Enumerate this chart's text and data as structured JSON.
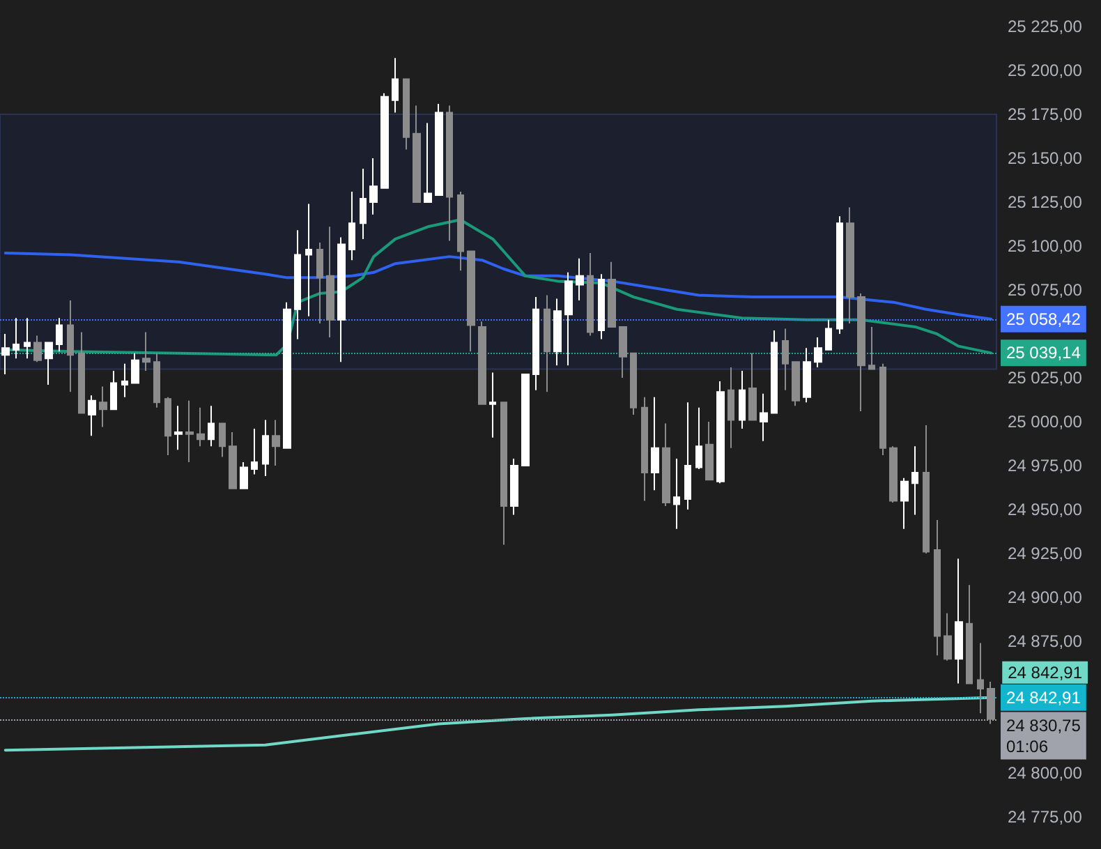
{
  "chart_data": {
    "type": "candlestick",
    "categories": [
      null,
      null,
      null,
      null,
      null,
      null,
      null,
      null,
      null,
      null,
      null,
      null,
      null,
      null,
      null,
      null,
      null,
      null,
      null,
      null,
      null,
      null,
      null,
      null,
      null,
      null,
      null,
      null,
      null,
      null,
      null,
      null,
      null,
      null,
      null,
      null,
      null,
      null,
      null,
      null,
      null,
      null,
      null,
      null,
      null,
      null,
      null,
      null,
      null,
      null,
      null,
      null,
      null,
      null,
      null,
      null,
      null,
      null,
      null,
      null,
      null,
      null,
      null,
      null,
      null,
      null,
      null,
      null,
      null,
      null,
      null,
      null,
      null,
      null,
      null,
      null,
      null,
      null,
      null,
      null,
      null,
      null,
      null,
      null,
      null,
      null,
      null,
      null,
      null,
      null,
      null,
      null
    ],
    "ohlc": [
      [
        25038,
        25050,
        25027,
        25042
      ],
      [
        25041,
        25059,
        25036,
        25044
      ],
      [
        25043,
        25059,
        25036,
        25045
      ],
      [
        25045,
        25049,
        25034,
        25035
      ],
      [
        25036,
        25045,
        25021,
        25045
      ],
      [
        25044,
        25059,
        25040,
        25055
      ],
      [
        25055,
        25069,
        25017,
        25038
      ],
      [
        25039,
        25051,
        25005,
        25005
      ],
      [
        25004,
        25015,
        24992,
        25012
      ],
      [
        25011,
        25020,
        24997,
        25007
      ],
      [
        25007,
        25029,
        25007,
        25022
      ],
      [
        25021,
        25033,
        25014,
        25023
      ],
      [
        25022,
        25039,
        25022,
        25035
      ],
      [
        25036,
        25051,
        25029,
        25034
      ],
      [
        25034,
        25039,
        25008,
        25011
      ],
      [
        25013,
        25014,
        24981,
        24992
      ],
      [
        24993,
        25009,
        24984,
        24994
      ],
      [
        24994,
        25012,
        24977,
        24993
      ],
      [
        24993,
        25008,
        24986,
        24990
      ],
      [
        24990,
        25009,
        24986,
        24999
      ],
      [
        24999,
        24999,
        24980,
        24986
      ],
      [
        24986,
        24994,
        24962,
        24962
      ],
      [
        24962,
        24977,
        24962,
        24974
      ],
      [
        24973,
        24996,
        24970,
        24977
      ],
      [
        24976,
        25001,
        24969,
        24992
      ],
      [
        24992,
        25001,
        24975,
        24986
      ],
      [
        24985,
        25068,
        24985,
        25064
      ],
      [
        25064,
        25109,
        25047,
        25095
      ],
      [
        25095,
        25124,
        25060,
        25098
      ],
      [
        25098,
        25102,
        25056,
        25082
      ],
      [
        25083,
        25111,
        25048,
        25058
      ],
      [
        25058,
        25105,
        25034,
        25101
      ],
      [
        25098,
        25131,
        25092,
        25113
      ],
      [
        25113,
        25144,
        25104,
        25127
      ],
      [
        25125,
        25150,
        25118,
        25134
      ],
      [
        25133,
        25187,
        25133,
        25185
      ],
      [
        25183,
        25207,
        25176,
        25195
      ],
      [
        25195,
        25195,
        25155,
        25162
      ],
      [
        25164,
        25180,
        25125,
        25125
      ],
      [
        25125,
        25170,
        25125,
        25130
      ],
      [
        25129,
        25181,
        25129,
        25176
      ],
      [
        25176,
        25180,
        25103,
        25128
      ],
      [
        25129,
        25131,
        25086,
        25097
      ],
      [
        25097,
        25097,
        25040,
        25055
      ],
      [
        25054,
        25057,
        25010,
        25010
      ],
      [
        25010,
        25028,
        24991,
        25011
      ],
      [
        25011,
        25011,
        24930,
        24952
      ],
      [
        24952,
        24979,
        24947,
        24975
      ],
      [
        24975,
        25027,
        24975,
        25027
      ],
      [
        25027,
        25071,
        25018,
        25064
      ],
      [
        25064,
        25072,
        25017,
        25040
      ],
      [
        25040,
        25070,
        25032,
        25063
      ],
      [
        25061,
        25085,
        25032,
        25080
      ],
      [
        25078,
        25093,
        25069,
        25083
      ],
      [
        25083,
        25096,
        25049,
        25051
      ],
      [
        25052,
        25084,
        25047,
        25081
      ],
      [
        25081,
        25091,
        25054,
        25054
      ],
      [
        25054,
        25054,
        25025,
        25037
      ],
      [
        25039,
        25039,
        25004,
        25008
      ],
      [
        25008,
        25014,
        24955,
        24971
      ],
      [
        24971,
        25014,
        24961,
        24985
      ],
      [
        24985,
        24999,
        24952,
        24954
      ],
      [
        24953,
        24979,
        24939,
        24957
      ],
      [
        24956,
        25011,
        24950,
        24975
      ],
      [
        24974,
        25008,
        24973,
        24986
      ],
      [
        24987,
        25000,
        24967,
        24967
      ],
      [
        24966,
        25023,
        24965,
        25017
      ],
      [
        25018,
        25031,
        24985,
        25001
      ],
      [
        25001,
        25029,
        24996,
        25018
      ],
      [
        25019,
        25039,
        25001,
        25001
      ],
      [
        25000,
        25016,
        24989,
        25005
      ],
      [
        25005,
        25052,
        25005,
        25045
      ],
      [
        25046,
        25053,
        25018,
        25033
      ],
      [
        25034,
        25034,
        25009,
        25012
      ],
      [
        25014,
        25042,
        25011,
        25034
      ],
      [
        25034,
        25048,
        25031,
        25042
      ],
      [
        25041,
        25058,
        25041,
        25053
      ],
      [
        25053,
        25117,
        25050,
        25113
      ],
      [
        25113,
        25122,
        25056,
        25071
      ],
      [
        25071,
        25073,
        25006,
        25032
      ],
      [
        25032,
        25054,
        25030,
        25030
      ],
      [
        25031,
        25033,
        24981,
        24985
      ],
      [
        24985,
        24986,
        24954,
        24955
      ],
      [
        24955,
        24968,
        24939,
        24966
      ],
      [
        24965,
        24986,
        24947,
        24971
      ],
      [
        24971,
        24998,
        24925,
        24926
      ],
      [
        24927,
        24944,
        24867,
        24878
      ],
      [
        24878,
        24891,
        24864,
        24865
      ],
      [
        24865,
        24922,
        24851,
        24886
      ],
      [
        24885,
        24907,
        24851,
        24851
      ],
      [
        24853,
        24874,
        24834,
        24848
      ],
      [
        24848,
        24852,
        24828,
        24830.75
      ]
    ],
    "colors": [
      "#ffffff",
      "#ffffff",
      "#ffffff",
      "#8c8c8c",
      "#ffffff",
      "#ffffff",
      "#8c8c8c",
      "#8c8c8c",
      "#ffffff",
      "#8c8c8c",
      "#ffffff",
      "#ffffff",
      "#ffffff",
      "#8c8c8c",
      "#8c8c8c",
      "#8c8c8c",
      "#ffffff",
      "#8c8c8c",
      "#8c8c8c",
      "#ffffff",
      "#8c8c8c",
      "#8c8c8c",
      "#ffffff",
      "#ffffff",
      "#ffffff",
      "#8c8c8c",
      "#ffffff",
      "#ffffff",
      "#ffffff",
      "#8c8c8c",
      "#8c8c8c",
      "#ffffff",
      "#ffffff",
      "#ffffff",
      "#ffffff",
      "#ffffff",
      "#ffffff",
      "#8c8c8c",
      "#8c8c8c",
      "#ffffff",
      "#ffffff",
      "#8c8c8c",
      "#8c8c8c",
      "#8c8c8c",
      "#8c8c8c",
      "#ffffff",
      "#8c8c8c",
      "#ffffff",
      "#ffffff",
      "#ffffff",
      "#8c8c8c",
      "#ffffff",
      "#ffffff",
      "#ffffff",
      "#8c8c8c",
      "#ffffff",
      "#8c8c8c",
      "#8c8c8c",
      "#8c8c8c",
      "#8c8c8c",
      "#ffffff",
      "#8c8c8c",
      "#ffffff",
      "#ffffff",
      "#ffffff",
      "#8c8c8c",
      "#ffffff",
      "#8c8c8c",
      "#ffffff",
      "#8c8c8c",
      "#ffffff",
      "#ffffff",
      "#8c8c8c",
      "#8c8c8c",
      "#ffffff",
      "#ffffff",
      "#ffffff",
      "#ffffff",
      "#8c8c8c",
      "#8c8c8c",
      "#8c8c8c",
      "#8c8c8c",
      "#8c8c8c",
      "#ffffff",
      "#ffffff",
      "#8c8c8c",
      "#8c8c8c",
      "#8c8c8c",
      "#ffffff",
      "#8c8c8c",
      "#8c8c8c",
      "#8c8c8c"
    ],
    "series": [
      {
        "type": "line",
        "color": "#2f62ee",
        "values": [
          25096,
          null,
          null,
          null,
          null,
          null,
          25095,
          null,
          null,
          null,
          null,
          null,
          null,
          null,
          null,
          null,
          25091,
          null,
          null,
          null,
          null,
          null,
          null,
          null,
          25084,
          null,
          25082,
          null,
          null,
          25082,
          null,
          null,
          25083,
          null,
          25085,
          null,
          25090,
          null,
          null,
          null,
          null,
          25094,
          null,
          null,
          25092,
          null,
          25087,
          null,
          25083,
          null,
          null,
          25083,
          null,
          null,
          null,
          null,
          25080,
          null,
          null,
          null,
          null,
          25075,
          null,
          null,
          25072,
          null,
          null,
          null,
          null,
          25071,
          null,
          null,
          null,
          null,
          null,
          null,
          null,
          25071,
          null,
          null,
          null,
          null,
          25068,
          null,
          null,
          25064,
          null,
          null,
          25061,
          null,
          null,
          25058.42
        ]
      },
      {
        "type": "line",
        "color": "#1a9a78",
        "values": [
          25041,
          null,
          null,
          null,
          null,
          null,
          25040,
          null,
          null,
          null,
          null,
          null,
          null,
          null,
          null,
          null,
          25039,
          null,
          null,
          null,
          null,
          null,
          null,
          null,
          null,
          25038,
          25044,
          25068,
          null,
          25073,
          null,
          25074,
          null,
          25082,
          25094,
          null,
          25104,
          null,
          null,
          25111,
          null,
          null,
          25115,
          null,
          null,
          25104,
          null,
          25090,
          25083,
          null,
          null,
          25080,
          null,
          null,
          null,
          25079,
          null,
          null,
          25071,
          null,
          null,
          null,
          25064,
          null,
          null,
          null,
          null,
          null,
          25059,
          null,
          null,
          null,
          null,
          null,
          25058,
          null,
          null,
          null,
          null,
          25058,
          null,
          null,
          null,
          null,
          25054,
          null,
          25050,
          null,
          25043,
          null,
          null,
          25039.14
        ]
      },
      {
        "type": "line",
        "color": "#6fd8c6",
        "value_labels": [
          null,
          null,
          null,
          null,
          null,
          null,
          null,
          null,
          null,
          null,
          null,
          null,
          null,
          null,
          null,
          null,
          null,
          null,
          null,
          null,
          null,
          null,
          null,
          null,
          null,
          null,
          null,
          null,
          null,
          null,
          null,
          null,
          null,
          null,
          null,
          null,
          null,
          null,
          null,
          null,
          null,
          null,
          null,
          null,
          null,
          null,
          null,
          null,
          null,
          null,
          null,
          null,
          null,
          null,
          null,
          null,
          null,
          null,
          null,
          null,
          null,
          null,
          null,
          null,
          null,
          null,
          null,
          null,
          null,
          null,
          null,
          null,
          null,
          null,
          null,
          null,
          null,
          null,
          null,
          null,
          null,
          null,
          null,
          null,
          null,
          null,
          null,
          null,
          null,
          null,
          null,
          "24 842,91"
        ],
        "values": [
          24813,
          null,
          null,
          null,
          null,
          null,
          null,
          null,
          null,
          null,
          null,
          null,
          null,
          null,
          null,
          null,
          null,
          null,
          null,
          null,
          null,
          null,
          null,
          null,
          24816,
          null,
          null,
          null,
          null,
          null,
          null,
          null,
          24822,
          null,
          null,
          null,
          null,
          null,
          null,
          null,
          24828,
          null,
          null,
          null,
          null,
          null,
          null,
          null,
          24831,
          null,
          null,
          null,
          null,
          null,
          null,
          null,
          24833,
          null,
          null,
          null,
          null,
          null,
          null,
          null,
          24836,
          null,
          null,
          null,
          null,
          null,
          null,
          null,
          24838,
          null,
          null,
          null,
          null,
          null,
          null,
          null,
          24841,
          null,
          null,
          null,
          null,
          null,
          null,
          null,
          null,
          null,
          null,
          24842.91
        ]
      }
    ],
    "ylim": [
      24775,
      25225
    ],
    "yticks": [
      {
        "value": 24775,
        "label": "24 775,00"
      },
      {
        "value": 24800,
        "label": "24 800,00"
      },
      {
        "value": 24875,
        "label": "24 875,00"
      },
      {
        "value": 24900,
        "label": "24 900,00"
      },
      {
        "value": 24925,
        "label": "24 925,00"
      },
      {
        "value": 24950,
        "label": "24 950,00"
      },
      {
        "value": 24975,
        "label": "24 975,00"
      },
      {
        "value": 25000,
        "label": "25 000,00"
      },
      {
        "value": 25025,
        "label": "25 025,00"
      },
      {
        "value": 25075,
        "label": "25 075,00"
      },
      {
        "value": 25100,
        "label": "25 100,00"
      },
      {
        "value": 25125,
        "label": "25 125,00"
      },
      {
        "value": 25150,
        "label": "25 150,00"
      },
      {
        "value": 25175,
        "label": "25 175,00"
      },
      {
        "value": 25200,
        "label": "25 200,00"
      },
      {
        "value": 25225,
        "label": "25 225,00"
      }
    ],
    "tick_labels": "y",
    "grid": false,
    "marker": "none",
    "line_style": "solid",
    "ref_lines": [
      {
        "axis": "y",
        "value": 25058.42,
        "label": "25 058,42",
        "color": "#4474ff",
        "line_style": "dotted"
      },
      {
        "axis": "y",
        "value": 25039.14,
        "label": "25 039,14",
        "color": "#22a888",
        "line_style": "dotted"
      },
      {
        "axis": "y",
        "value": 24842.91,
        "label": "24 842,91",
        "color": "#12b5cb",
        "line_style": "dotted"
      },
      {
        "axis": "y",
        "value": 24830.75,
        "label": "24 830,75\n01:06",
        "color": "#a0a3ab",
        "line_style": "dotted"
      }
    ],
    "bands": [
      {
        "axis": "y",
        "from": 25030,
        "to": 25175,
        "color": "#1c1f2d"
      }
    ]
  }
}
